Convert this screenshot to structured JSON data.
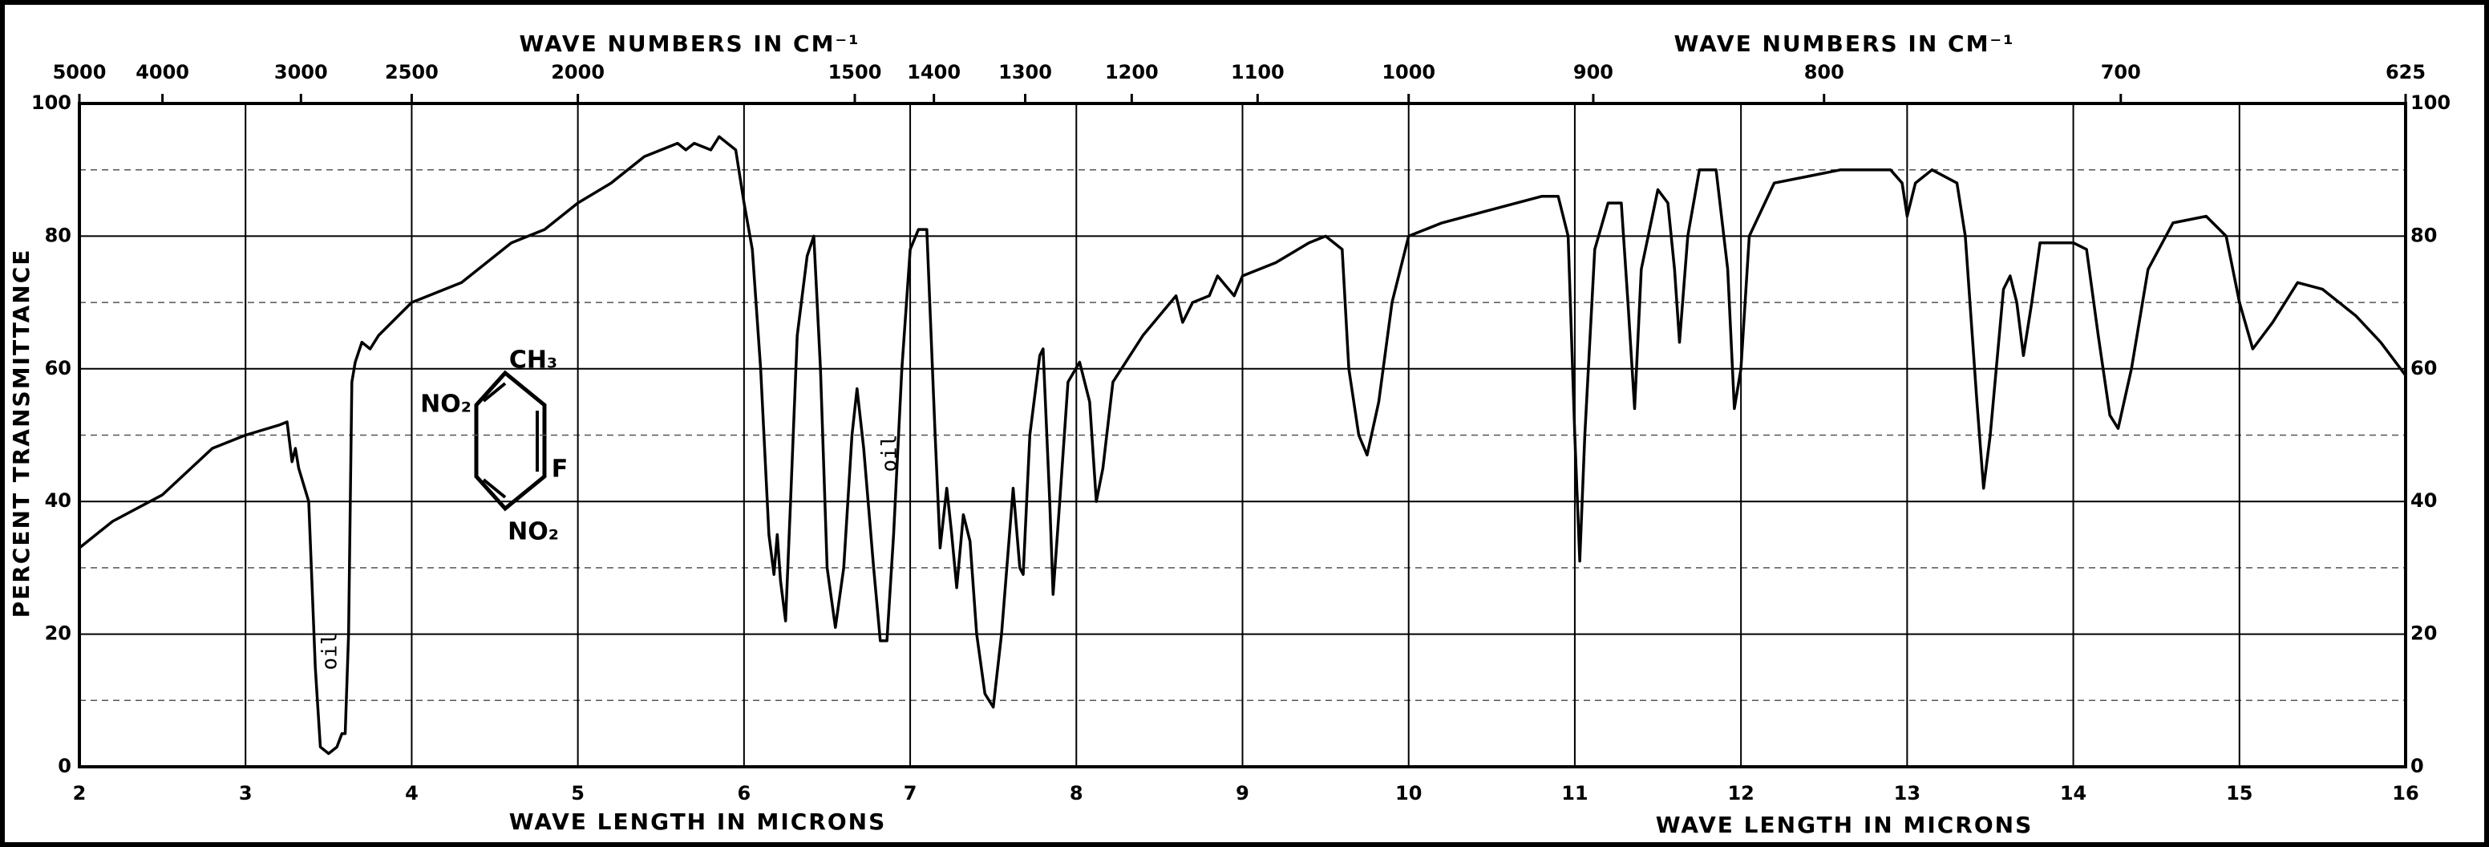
{
  "chart_data": {
    "type": "line",
    "x_label": "WAVE LENGTH IN MICRONS",
    "x2_label": "WAVE NUMBERS IN CM⁻¹",
    "y_label": "PERCENT TRANSMITTANCE",
    "color": "#000000",
    "grid": true,
    "xlim": [
      2,
      16
    ],
    "xticks": [
      2,
      3,
      4,
      5,
      6,
      7,
      8,
      9,
      10,
      11,
      12,
      13,
      14,
      15,
      16
    ],
    "ylim": [
      0,
      100
    ],
    "yticks": [
      0,
      20,
      40,
      60,
      80,
      100
    ],
    "y_minor_ticks": [
      10,
      30,
      50,
      70,
      90
    ],
    "x2lim": [
      5000,
      625
    ],
    "x2ticks": [
      5000,
      4000,
      3000,
      2500,
      2000,
      1500,
      1400,
      1300,
      1200,
      1100,
      1000,
      900,
      800,
      700,
      625
    ],
    "annotations": [
      "oil",
      "oil"
    ],
    "structure_labels": [
      "CH₃",
      "NO₂",
      "F",
      "NO₂"
    ],
    "x": [
      2.0,
      2.2,
      2.5,
      2.8,
      3.0,
      3.2,
      3.25,
      3.28,
      3.3,
      3.32,
      3.38,
      3.42,
      3.45,
      3.5,
      3.55,
      3.58,
      3.6,
      3.62,
      3.64,
      3.66,
      3.7,
      3.75,
      3.8,
      4.0,
      4.3,
      4.6,
      4.8,
      5.0,
      5.2,
      5.4,
      5.6,
      5.65,
      5.7,
      5.8,
      5.85,
      5.95,
      6.0,
      6.05,
      6.1,
      6.15,
      6.18,
      6.2,
      6.22,
      6.25,
      6.28,
      6.32,
      6.38,
      6.42,
      6.46,
      6.5,
      6.55,
      6.6,
      6.65,
      6.68,
      6.72,
      6.78,
      6.82,
      6.86,
      6.9,
      6.95,
      7.0,
      7.05,
      7.1,
      7.15,
      7.18,
      7.22,
      7.25,
      7.28,
      7.32,
      7.36,
      7.4,
      7.45,
      7.5,
      7.55,
      7.62,
      7.66,
      7.68,
      7.72,
      7.78,
      7.8,
      7.84,
      7.86,
      7.9,
      7.95,
      8.02,
      8.08,
      8.12,
      8.16,
      8.22,
      8.4,
      8.6,
      8.64,
      8.7,
      8.8,
      8.85,
      8.95,
      9.0,
      9.2,
      9.4,
      9.5,
      9.6,
      9.64,
      9.7,
      9.75,
      9.82,
      9.9,
      10.0,
      10.2,
      10.5,
      10.8,
      10.9,
      10.96,
      11.0,
      11.03,
      11.06,
      11.12,
      11.2,
      11.28,
      11.32,
      11.36,
      11.4,
      11.5,
      11.56,
      11.6,
      11.63,
      11.68,
      11.75,
      11.85,
      11.92,
      11.96,
      12.0,
      12.05,
      12.2,
      12.4,
      12.6,
      12.9,
      12.97,
      13.0,
      13.05,
      13.15,
      13.3,
      13.35,
      13.42,
      13.46,
      13.5,
      13.58,
      13.62,
      13.66,
      13.7,
      13.75,
      13.8,
      14.0,
      14.08,
      14.15,
      14.22,
      14.27,
      14.35,
      14.45,
      14.6,
      14.8,
      14.92,
      15.0,
      15.08,
      15.2,
      15.35,
      15.5,
      15.7,
      15.85,
      16.0
    ],
    "values": [
      33,
      37,
      41,
      48,
      50,
      51.5,
      52,
      46,
      48,
      45,
      40,
      15,
      3,
      2,
      3,
      5,
      5,
      20,
      58,
      61,
      64,
      63,
      65,
      70,
      73,
      79,
      81,
      85,
      88,
      92,
      94,
      93,
      94,
      93,
      95,
      93,
      85,
      78,
      60,
      35,
      29,
      35,
      28,
      22,
      40,
      65,
      77,
      80,
      60,
      30,
      21,
      30,
      50,
      57,
      48,
      30,
      19,
      19,
      35,
      60,
      78,
      81,
      81,
      50,
      33,
      42,
      35,
      27,
      38,
      34,
      20,
      11,
      9,
      20,
      42,
      30,
      29,
      50,
      62,
      63,
      40,
      26,
      40,
      58,
      61,
      55,
      40,
      45,
      58,
      65,
      71,
      67,
      70,
      71,
      74,
      71,
      74,
      76,
      79,
      80,
      78,
      60,
      50,
      47,
      55,
      70,
      80,
      82,
      84,
      86,
      86,
      80,
      50,
      31,
      50,
      78,
      85,
      85,
      70,
      54,
      75,
      87,
      85,
      75,
      64,
      80,
      90,
      90,
      75,
      54,
      60,
      80,
      88,
      89,
      90,
      90,
      88,
      83,
      88,
      90,
      88,
      80,
      55,
      42,
      50,
      72,
      74,
      70,
      62,
      70,
      79,
      79,
      78,
      65,
      53,
      51,
      60,
      75,
      82,
      83,
      80,
      70,
      63,
      67,
      73,
      72,
      68,
      64,
      59
    ]
  }
}
